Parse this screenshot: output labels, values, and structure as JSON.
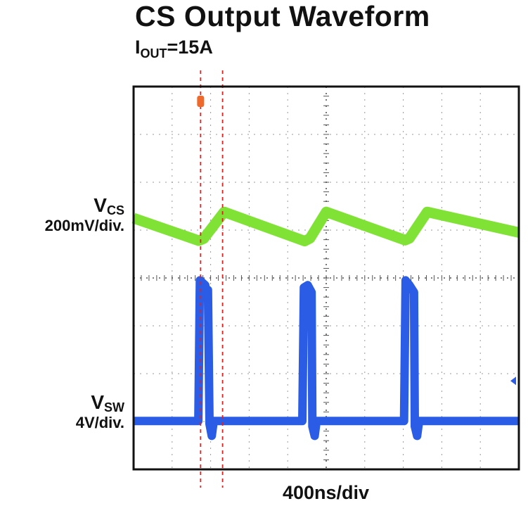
{
  "title": "CS Output Waveform",
  "subtitle": {
    "prefix": "I",
    "subscript": "OUT",
    "suffix": "=15A"
  },
  "channels": [
    {
      "name": "V",
      "subscript": "CS",
      "scale": "200mV/div."
    },
    {
      "name": "V",
      "subscript": "SW",
      "scale": "4V/div."
    }
  ],
  "timebase": "400ns/div",
  "colors": {
    "cs_trace": "#7fe234",
    "sw_trace": "#2a5ce6",
    "grid": "#9a9a9a",
    "frame": "#111111",
    "cursor": "#dd2222",
    "trigger_marker": "#ee6a2c",
    "level_marker": "#2a5ce6"
  },
  "chart_data": {
    "type": "line",
    "title": "CS Output Waveform",
    "subtitle": "IOUT=15A",
    "xlabel": "400ns/div",
    "x_units": "div",
    "xlim": [
      0,
      10
    ],
    "ylim": [
      -4,
      4
    ],
    "grid": true,
    "series": [
      {
        "name": "VCS",
        "scale": "200mV/div.",
        "color": "#7fe234",
        "points": [
          [
            0.0,
            1.25
          ],
          [
            1.69,
            0.78
          ],
          [
            1.82,
            0.82
          ],
          [
            2.35,
            1.38
          ],
          [
            4.44,
            0.77
          ],
          [
            4.58,
            0.83
          ],
          [
            5.0,
            1.38
          ],
          [
            7.05,
            0.79
          ],
          [
            7.16,
            0.83
          ],
          [
            7.62,
            1.38
          ],
          [
            10.0,
            0.95
          ]
        ]
      },
      {
        "name": "VSW",
        "scale": "4V/div.",
        "color": "#2a5ce6",
        "points": [
          [
            0.0,
            -2.99
          ],
          [
            1.68,
            -2.99
          ],
          [
            1.72,
            -0.05
          ],
          [
            1.86,
            -0.15
          ],
          [
            1.88,
            -0.25
          ],
          [
            1.93,
            -0.25
          ],
          [
            1.97,
            -3.05
          ],
          [
            2.03,
            -3.3
          ],
          [
            2.08,
            -2.99
          ],
          [
            4.38,
            -2.99
          ],
          [
            4.42,
            -0.2
          ],
          [
            4.52,
            -0.15
          ],
          [
            4.62,
            -0.3
          ],
          [
            4.64,
            -3.1
          ],
          [
            4.7,
            -3.3
          ],
          [
            4.75,
            -2.99
          ],
          [
            7.02,
            -2.99
          ],
          [
            7.06,
            -0.05
          ],
          [
            7.16,
            -0.15
          ],
          [
            7.28,
            -0.3
          ],
          [
            7.3,
            -3.1
          ],
          [
            7.36,
            -3.3
          ],
          [
            7.41,
            -2.99
          ],
          [
            10.0,
            -2.99
          ]
        ]
      }
    ],
    "cursors_x": [
      1.74,
      2.31
    ]
  }
}
